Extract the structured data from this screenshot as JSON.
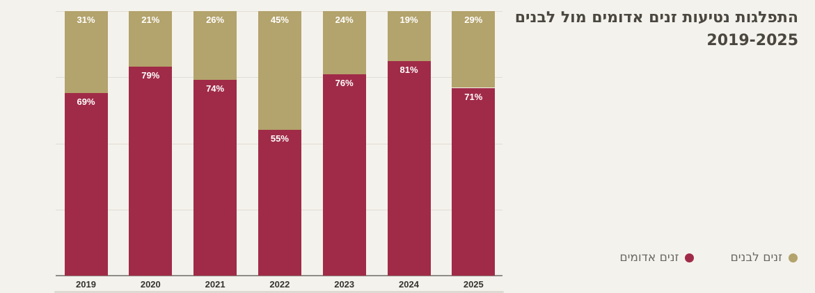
{
  "page": {
    "background": "#f4f2ec"
  },
  "title": {
    "line1": "התפלגות נטיעות זנים אדומים מול לבנים",
    "line2": "2019-2025",
    "color": "#49473f"
  },
  "chart_data": {
    "type": "bar",
    "stacked": true,
    "orientation": "vertical",
    "title": "התפלגות נטיעות זנים אדומים מול לבנים 2019-2025",
    "categories": [
      "2019",
      "2020",
      "2021",
      "2022",
      "2023",
      "2024",
      "2025"
    ],
    "series": [
      {
        "name": "זנים אדומים",
        "color": "#a02b48",
        "values": [
          69,
          79,
          74,
          55,
          76,
          81,
          71
        ]
      },
      {
        "name": "זנים לבנים",
        "color": "#b3a36c",
        "values": [
          31,
          21,
          26,
          45,
          24,
          19,
          29
        ]
      }
    ],
    "value_suffix": "%",
    "value_label_color": "#ffffff",
    "ylim": [
      0,
      100
    ],
    "grid": true,
    "gridlines_percent": [
      0,
      25,
      50,
      75,
      100
    ],
    "legend_position": "bottom-right",
    "xlabel": "",
    "ylabel": ""
  },
  "legend": {
    "items": [
      {
        "label": "זנים לבנים",
        "color": "#b3a36c"
      },
      {
        "label": "זנים אדומים",
        "color": "#a02b48"
      }
    ]
  },
  "axis": {
    "line_color": "#8e8c86",
    "grid_color": "#e0ddd5",
    "tick_color": "#34332f"
  }
}
